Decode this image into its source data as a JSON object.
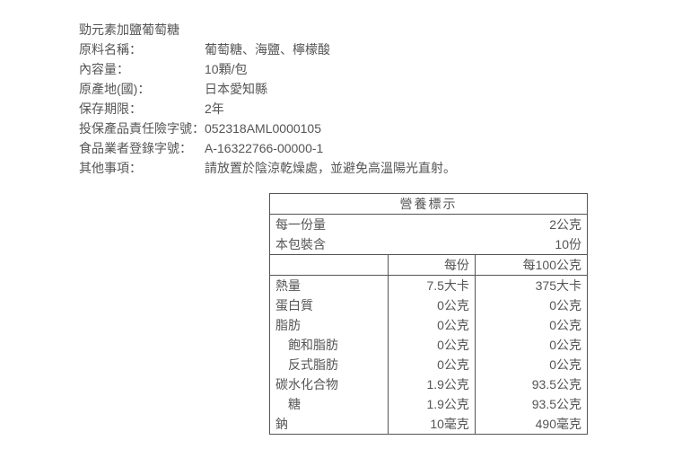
{
  "product": {
    "title": "勁元素加鹽葡萄糖",
    "rows": [
      {
        "label": "原料名稱：",
        "value": "葡萄糖、海鹽、檸檬酸"
      },
      {
        "label": "內容量：",
        "value": "10顆/包"
      },
      {
        "label": "原產地(國)：",
        "value": "日本愛知縣"
      },
      {
        "label": "保存期限：",
        "value": "2年"
      },
      {
        "label": "投保產品責任險字號：",
        "value": "052318AML0000105"
      },
      {
        "label": "食品業者登錄字號：",
        "value": "A-16322766-00000-1"
      },
      {
        "label": "其他事項：",
        "value": "請放置於陰涼乾燥處，並避免高溫陽光直射。"
      }
    ]
  },
  "nutrition": {
    "title": "營養標示",
    "serving_label": "每一份量",
    "serving_value": "2公克",
    "package_label": "本包裝含",
    "package_value": "10份",
    "col_per_serving": "每份",
    "col_per_100g": "每100公克",
    "rows": [
      {
        "name": "熱量",
        "per_serving": "7.5大卡",
        "per_100g": "375大卡",
        "indent": 0
      },
      {
        "name": "蛋白質",
        "per_serving": "0公克",
        "per_100g": "0公克",
        "indent": 0
      },
      {
        "name": "脂肪",
        "per_serving": "0公克",
        "per_100g": "0公克",
        "indent": 0
      },
      {
        "name": "飽和脂肪",
        "per_serving": "0公克",
        "per_100g": "0公克",
        "indent": 1
      },
      {
        "name": "反式脂肪",
        "per_serving": "0公克",
        "per_100g": "0公克",
        "indent": 1
      },
      {
        "name": "碳水化合物",
        "per_serving": "1.9公克",
        "per_100g": "93.5公克",
        "indent": 0
      },
      {
        "name": "糖",
        "per_serving": "1.9公克",
        "per_100g": "93.5公克",
        "indent": 1
      },
      {
        "name": "鈉",
        "per_serving": "10毫克",
        "per_100g": "490毫克",
        "indent": 0
      }
    ]
  },
  "style": {
    "text_color": "#555555",
    "border_color": "#555555",
    "background_color": "#ffffff",
    "font_size": 14
  }
}
